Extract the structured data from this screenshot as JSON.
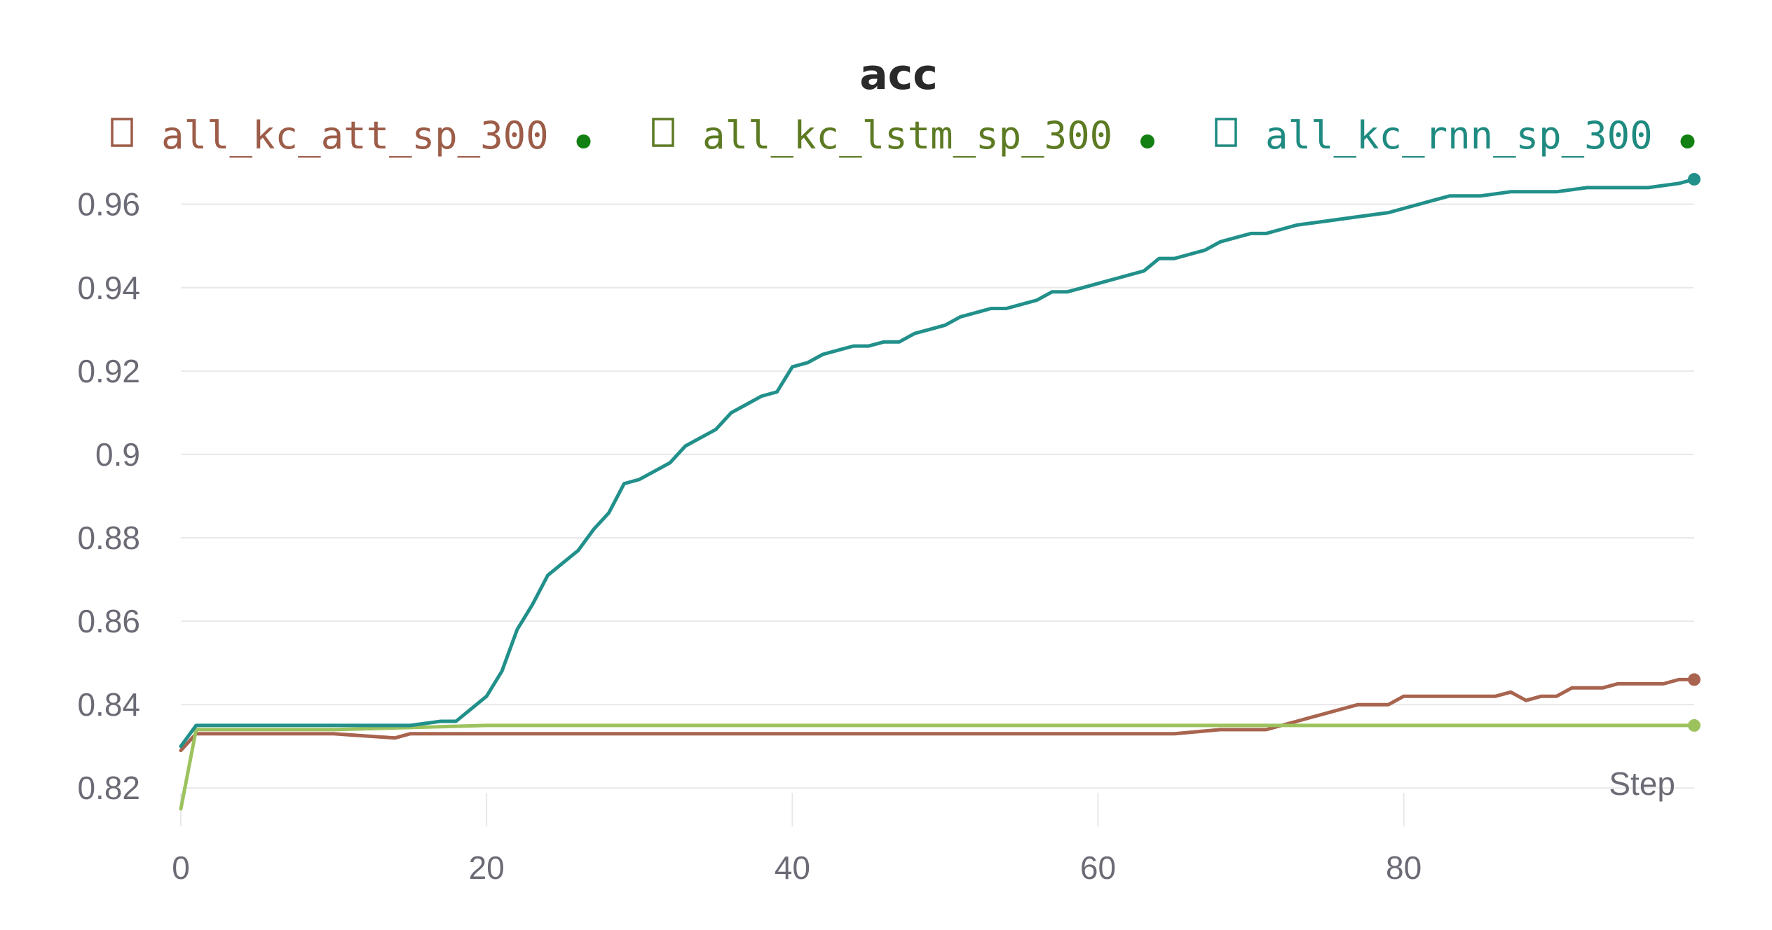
{
  "chart_data": {
    "type": "line",
    "title": "acc",
    "xlabel": "Step",
    "ylabel": "",
    "xlim": [
      0,
      99
    ],
    "ylim": [
      0.815,
      0.967
    ],
    "x_ticks": [
      "0",
      "20",
      "40",
      "60",
      "80"
    ],
    "x_tick_values": [
      0,
      20,
      40,
      60,
      80
    ],
    "y_ticks": [
      "0.82",
      "0.84",
      "0.86",
      "0.88",
      "0.9",
      "0.92",
      "0.94",
      "0.96"
    ],
    "y_tick_values": [
      0.82,
      0.84,
      0.86,
      0.88,
      0.9,
      0.92,
      0.94,
      0.96
    ],
    "grid": true,
    "legend_position": "top",
    "series": [
      {
        "name": "all_kc_att_sp_300",
        "color": "#a8644f",
        "legend_color": "#9c5c48",
        "x": [
          0,
          1,
          5,
          10,
          14,
          15,
          20,
          30,
          40,
          50,
          60,
          65,
          68,
          69,
          70,
          71,
          72,
          73,
          74,
          75,
          76,
          77,
          78,
          79,
          80,
          81,
          82,
          83,
          84,
          85,
          86,
          87,
          88,
          89,
          90,
          91,
          92,
          93,
          94,
          95,
          96,
          97,
          98,
          99
        ],
        "values": [
          0.829,
          0.833,
          0.833,
          0.833,
          0.832,
          0.833,
          0.833,
          0.833,
          0.833,
          0.833,
          0.833,
          0.833,
          0.834,
          0.834,
          0.834,
          0.834,
          0.835,
          0.836,
          0.837,
          0.838,
          0.839,
          0.84,
          0.84,
          0.84,
          0.842,
          0.842,
          0.842,
          0.842,
          0.842,
          0.842,
          0.842,
          0.843,
          0.841,
          0.842,
          0.842,
          0.844,
          0.844,
          0.844,
          0.845,
          0.845,
          0.845,
          0.845,
          0.846,
          0.846
        ]
      },
      {
        "name": "all_kc_lstm_sp_300",
        "color": "#9cc25e",
        "legend_color": "#5c7a22",
        "x": [
          0,
          1,
          10,
          20,
          30,
          40,
          50,
          60,
          70,
          80,
          90,
          99
        ],
        "values": [
          0.815,
          0.834,
          0.834,
          0.835,
          0.835,
          0.835,
          0.835,
          0.835,
          0.835,
          0.835,
          0.835,
          0.835
        ]
      },
      {
        "name": "all_kc_rnn_sp_300",
        "color": "#22908a",
        "legend_color": "#1e8a80",
        "x": [
          0,
          1,
          5,
          10,
          15,
          17,
          18,
          19,
          20,
          21,
          22,
          23,
          24,
          25,
          26,
          27,
          28,
          29,
          30,
          31,
          32,
          33,
          34,
          35,
          36,
          37,
          38,
          39,
          40,
          41,
          42,
          43,
          44,
          45,
          46,
          47,
          48,
          49,
          50,
          51,
          52,
          53,
          54,
          55,
          56,
          57,
          58,
          59,
          60,
          62,
          63,
          64,
          65,
          66,
          67,
          68,
          69,
          70,
          71,
          72,
          73,
          75,
          77,
          79,
          80,
          82,
          83,
          85,
          87,
          90,
          92,
          94,
          96,
          98,
          99
        ],
        "values": [
          0.83,
          0.835,
          0.835,
          0.835,
          0.835,
          0.836,
          0.836,
          0.839,
          0.842,
          0.848,
          0.858,
          0.864,
          0.871,
          0.874,
          0.877,
          0.882,
          0.886,
          0.893,
          0.894,
          0.896,
          0.898,
          0.902,
          0.904,
          0.906,
          0.91,
          0.912,
          0.914,
          0.915,
          0.921,
          0.922,
          0.924,
          0.925,
          0.926,
          0.926,
          0.927,
          0.927,
          0.929,
          0.93,
          0.931,
          0.933,
          0.934,
          0.935,
          0.935,
          0.936,
          0.937,
          0.939,
          0.939,
          0.94,
          0.941,
          0.943,
          0.944,
          0.947,
          0.947,
          0.948,
          0.949,
          0.951,
          0.952,
          0.953,
          0.953,
          0.954,
          0.955,
          0.956,
          0.957,
          0.958,
          0.959,
          0.961,
          0.962,
          0.962,
          0.963,
          0.963,
          0.964,
          0.964,
          0.964,
          0.965,
          0.966
        ]
      }
    ]
  }
}
